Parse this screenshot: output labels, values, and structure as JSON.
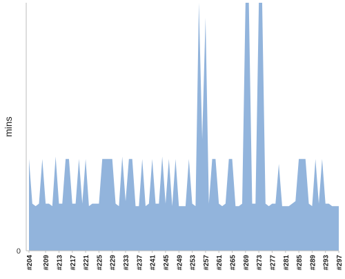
{
  "chart_data": {
    "type": "area",
    "title": "",
    "xlabel": "",
    "ylabel": "mins",
    "y_tick_labels": [
      "0"
    ],
    "ylim": [
      0,
      100
    ],
    "grid": false,
    "legend": "none",
    "series_color": "#92b4dc",
    "axis_color": "#bbbbbb",
    "x_tick_labels": [
      "#204",
      "#209",
      "#213",
      "#217",
      "#221",
      "#225",
      "#229",
      "#233",
      "#237",
      "#241",
      "#245",
      "#249",
      "#253",
      "#257",
      "#261",
      "#265",
      "#269",
      "#273",
      "#277",
      "#281",
      "#285",
      "#289",
      "#293",
      "#297"
    ],
    "x": [
      "#204",
      "#205",
      "#206",
      "#207",
      "#208",
      "#209",
      "#210",
      "#211",
      "#212",
      "#213",
      "#214",
      "#215",
      "#216",
      "#217",
      "#218",
      "#219",
      "#220",
      "#221",
      "#222",
      "#223",
      "#224",
      "#225",
      "#226",
      "#227",
      "#228",
      "#229",
      "#230",
      "#231",
      "#232",
      "#233",
      "#234",
      "#235",
      "#236",
      "#237",
      "#238",
      "#239",
      "#240",
      "#241",
      "#242",
      "#243",
      "#244",
      "#245",
      "#246",
      "#247",
      "#248",
      "#249",
      "#250",
      "#251",
      "#252",
      "#253",
      "#254",
      "#255",
      "#256",
      "#257",
      "#258",
      "#259",
      "#260",
      "#261",
      "#262",
      "#263",
      "#264",
      "#265",
      "#266",
      "#267",
      "#268",
      "#269",
      "#270",
      "#271",
      "#272",
      "#273",
      "#274",
      "#275",
      "#276",
      "#277",
      "#278",
      "#279",
      "#280",
      "#281",
      "#282",
      "#283",
      "#284",
      "#285",
      "#286",
      "#287",
      "#288",
      "#289",
      "#290",
      "#291",
      "#292",
      "#293",
      "#294",
      "#295",
      "#296",
      "#297"
    ],
    "series": [
      {
        "values": [
          37,
          19,
          18,
          19,
          37,
          19,
          19,
          18,
          38,
          19,
          19,
          37,
          37,
          19,
          19,
          37,
          19,
          37,
          18,
          19,
          19,
          19,
          37,
          37,
          37,
          37,
          19,
          18,
          38,
          20,
          37,
          37,
          18,
          18,
          37,
          18,
          19,
          37,
          19,
          19,
          38,
          19,
          37,
          18,
          37,
          18,
          18,
          18,
          37,
          19,
          18,
          100,
          45,
          94,
          19,
          37,
          37,
          19,
          18,
          19,
          37,
          37,
          18,
          18,
          19,
          100,
          100,
          19,
          19,
          100,
          100,
          19,
          18,
          19,
          19,
          35,
          18,
          18,
          18,
          19,
          20,
          37,
          37,
          37,
          19,
          18,
          37,
          19,
          37,
          19,
          19,
          18,
          18,
          18
        ]
      }
    ]
  }
}
